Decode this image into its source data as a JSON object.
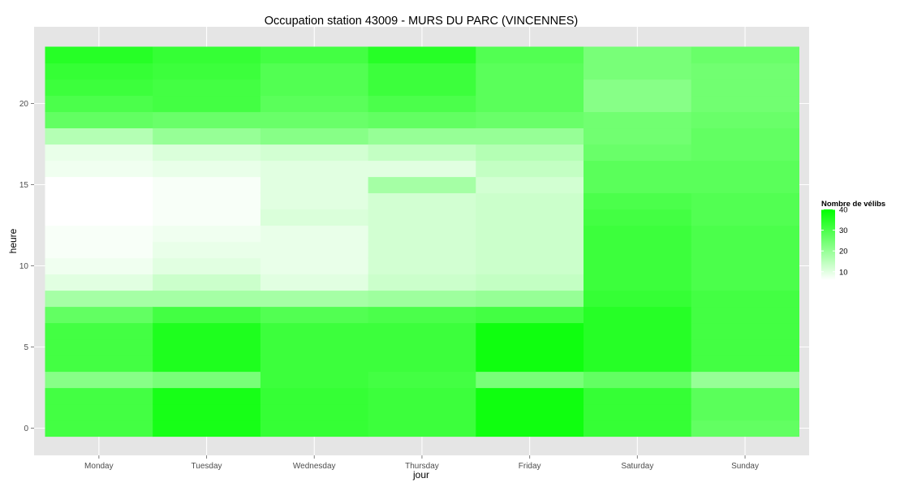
{
  "chart_data": {
    "type": "heatmap",
    "title": "Occupation station 43009 - MURS DU PARC (VINCENNES)",
    "xlabel": "jour",
    "ylabel": "heure",
    "categories": [
      "Monday",
      "Tuesday",
      "Wednesday",
      "Thursday",
      "Friday",
      "Saturday",
      "Sunday"
    ],
    "y": [
      0,
      1,
      2,
      3,
      4,
      5,
      6,
      7,
      8,
      9,
      10,
      11,
      12,
      13,
      14,
      15,
      16,
      17,
      18,
      19,
      20,
      21,
      22,
      23
    ],
    "y_ticks": [
      0,
      5,
      10,
      15,
      20
    ],
    "ylim": [
      -0.5,
      23.5
    ],
    "grid": true,
    "legend_position": "right",
    "legend": {
      "title": "Nombre de vélibs",
      "ticks": [
        10,
        20,
        30,
        40
      ],
      "range": [
        6,
        40
      ]
    },
    "colors": {
      "low": "#ffffff",
      "high": "#00ff00",
      "panel": "#e5e5e5",
      "grid": "#ffffff"
    },
    "values": [
      [
        31,
        31,
        31,
        22,
        31,
        31,
        31,
        27,
        18,
        10,
        8,
        7,
        7,
        6,
        6,
        6,
        8,
        9,
        16,
        27,
        30,
        32,
        33,
        35
      ],
      [
        37,
        37,
        37,
        24,
        36,
        36,
        36,
        31,
        18,
        13,
        10,
        9,
        8,
        7,
        7,
        7,
        9,
        11,
        20,
        26,
        31,
        31,
        32,
        33
      ],
      [
        33,
        33,
        33,
        32,
        32,
        32,
        32,
        29,
        18,
        10,
        9,
        9,
        9,
        11,
        10,
        10,
        10,
        12,
        22,
        26,
        28,
        29,
        29,
        31
      ],
      [
        32,
        32,
        32,
        31,
        32,
        32,
        32,
        30,
        19,
        13,
        12,
        12,
        12,
        12,
        12,
        18,
        10,
        14,
        20,
        27,
        30,
        32,
        32,
        35
      ],
      [
        38,
        38,
        38,
        24,
        38,
        38,
        38,
        31,
        20,
        14,
        13,
        13,
        13,
        13,
        13,
        12,
        14,
        16,
        20,
        26,
        28,
        28,
        28,
        29
      ],
      [
        33,
        33,
        33,
        27,
        35,
        35,
        35,
        35,
        33,
        32,
        32,
        32,
        32,
        31,
        30,
        28,
        28,
        26,
        25,
        25,
        22,
        22,
        24,
        24
      ],
      [
        27,
        28,
        28,
        20,
        31,
        31,
        31,
        31,
        31,
        30,
        30,
        30,
        30,
        29,
        29,
        28,
        28,
        27,
        27,
        26,
        25,
        25,
        25,
        26
      ]
    ]
  }
}
